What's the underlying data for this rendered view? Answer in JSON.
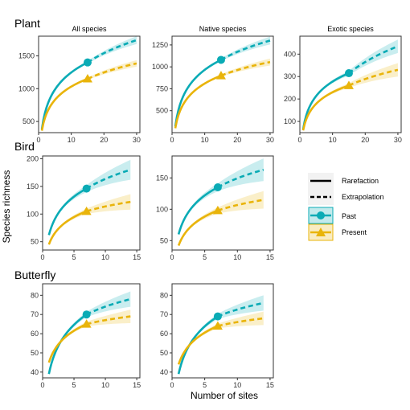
{
  "figure": {
    "xlabel": "Number of sites",
    "ylabel": "Species richness",
    "colors": {
      "past": "#0aabb5",
      "present": "#e9b40a"
    }
  },
  "legend": {
    "items": [
      {
        "key": "rarefaction",
        "label": "Rarefaction",
        "style": "solid"
      },
      {
        "key": "extrapolation",
        "label": "Extrapolation",
        "style": "dashed"
      },
      {
        "key": "past",
        "label": "Past",
        "marker": "circle",
        "color": "#0aabb5"
      },
      {
        "key": "present",
        "label": "Present",
        "marker": "triangle",
        "color": "#e9b40a"
      }
    ]
  },
  "chart_data": [
    {
      "type": "line",
      "group": "Plant",
      "title": "All species",
      "xlim": [
        0,
        31
      ],
      "ylim": [
        330,
        1800
      ],
      "xticks": [
        0,
        10,
        20,
        30
      ],
      "yticks": [
        500,
        1000,
        1500
      ],
      "series": [
        {
          "name": "Past",
          "color": "#0aabb5",
          "observed_x": 15,
          "observed_y": 1400,
          "start_y": 380,
          "end_x": 30,
          "end_y": 1740,
          "band": 60,
          "marker": "circle"
        },
        {
          "name": "Present",
          "color": "#e9b40a",
          "observed_x": 15,
          "observed_y": 1150,
          "start_y": 360,
          "end_x": 30,
          "end_y": 1385,
          "band": 50,
          "marker": "triangle"
        }
      ]
    },
    {
      "type": "line",
      "group": "Plant",
      "title": "Native species",
      "xlim": [
        0,
        31
      ],
      "ylim": [
        250,
        1350
      ],
      "xticks": [
        0,
        10,
        20,
        30
      ],
      "yticks": [
        500,
        750,
        1000,
        1250
      ],
      "series": [
        {
          "name": "Past",
          "color": "#0aabb5",
          "observed_x": 15,
          "observed_y": 1080,
          "start_y": 320,
          "end_x": 30,
          "end_y": 1300,
          "band": 45,
          "marker": "circle"
        },
        {
          "name": "Present",
          "color": "#e9b40a",
          "observed_x": 15,
          "observed_y": 900,
          "start_y": 300,
          "end_x": 30,
          "end_y": 1055,
          "band": 40,
          "marker": "triangle"
        }
      ]
    },
    {
      "type": "line",
      "group": "Plant",
      "title": "Exotic species",
      "xlim": [
        0,
        31
      ],
      "ylim": [
        50,
        480
      ],
      "xticks": [
        0,
        10,
        20,
        30
      ],
      "yticks": [
        100,
        200,
        300,
        400
      ],
      "series": [
        {
          "name": "Past",
          "color": "#0aabb5",
          "observed_x": 15,
          "observed_y": 315,
          "start_y": 65,
          "end_x": 30,
          "end_y": 435,
          "band": 30,
          "marker": "circle"
        },
        {
          "name": "Present",
          "color": "#e9b40a",
          "observed_x": 15,
          "observed_y": 260,
          "start_y": 60,
          "end_x": 30,
          "end_y": 330,
          "band": 30,
          "marker": "triangle"
        }
      ]
    },
    {
      "type": "line",
      "group": "Bird",
      "title": "",
      "xlim": [
        0,
        15.5
      ],
      "ylim": [
        35,
        205
      ],
      "xticks": [
        0,
        5,
        10,
        15
      ],
      "yticks": [
        50,
        100,
        150,
        200
      ],
      "series": [
        {
          "name": "Past",
          "color": "#0aabb5",
          "observed_x": 7,
          "observed_y": 146,
          "start_y": 62,
          "end_x": 14,
          "end_y": 180,
          "band": 18,
          "marker": "circle"
        },
        {
          "name": "Present",
          "color": "#e9b40a",
          "observed_x": 7,
          "observed_y": 105,
          "start_y": 45,
          "end_x": 14,
          "end_y": 122,
          "band": 14,
          "marker": "triangle"
        }
      ]
    },
    {
      "type": "line",
      "group": "Bird",
      "title": "",
      "xlim": [
        0,
        15.5
      ],
      "ylim": [
        35,
        185
      ],
      "xticks": [
        0,
        5,
        10,
        15
      ],
      "yticks": [
        50,
        100,
        150
      ],
      "series": [
        {
          "name": "Past",
          "color": "#0aabb5",
          "observed_x": 7,
          "observed_y": 135,
          "start_y": 60,
          "end_x": 14,
          "end_y": 163,
          "band": 18,
          "marker": "circle"
        },
        {
          "name": "Present",
          "color": "#e9b40a",
          "observed_x": 7,
          "observed_y": 98,
          "start_y": 42,
          "end_x": 14,
          "end_y": 115,
          "band": 14,
          "marker": "triangle"
        }
      ]
    },
    {
      "type": "line",
      "group": "Butterfly",
      "title": "",
      "xlim": [
        0,
        15.5
      ],
      "ylim": [
        37,
        86
      ],
      "xticks": [
        0,
        5,
        10,
        15
      ],
      "yticks": [
        40,
        50,
        60,
        70,
        80
      ],
      "series": [
        {
          "name": "Past",
          "color": "#0aabb5",
          "observed_x": 7,
          "observed_y": 70,
          "start_y": 39,
          "end_x": 14,
          "end_y": 78,
          "band": 4,
          "marker": "circle"
        },
        {
          "name": "Present",
          "color": "#e9b40a",
          "observed_x": 7,
          "observed_y": 65,
          "start_y": 45,
          "end_x": 14,
          "end_y": 69,
          "band": 3.5,
          "marker": "triangle"
        }
      ]
    },
    {
      "type": "line",
      "group": "Butterfly",
      "title": "",
      "xlim": [
        0,
        15.5
      ],
      "ylim": [
        37,
        86
      ],
      "xticks": [
        0,
        5,
        10,
        15
      ],
      "yticks": [
        40,
        50,
        60,
        70,
        80
      ],
      "series": [
        {
          "name": "Past",
          "color": "#0aabb5",
          "observed_x": 7,
          "observed_y": 69,
          "start_y": 39,
          "end_x": 14,
          "end_y": 76,
          "band": 4,
          "marker": "circle"
        },
        {
          "name": "Present",
          "color": "#e9b40a",
          "observed_x": 7,
          "observed_y": 64,
          "start_y": 44,
          "end_x": 14,
          "end_y": 68,
          "band": 3.5,
          "marker": "triangle"
        }
      ]
    }
  ]
}
